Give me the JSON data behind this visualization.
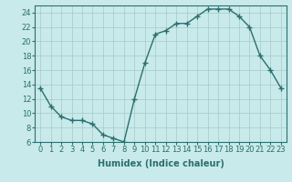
{
  "x": [
    0,
    1,
    2,
    3,
    4,
    5,
    6,
    7,
    8,
    9,
    10,
    11,
    12,
    13,
    14,
    15,
    16,
    17,
    18,
    19,
    20,
    21,
    22,
    23
  ],
  "y": [
    13.5,
    11.0,
    9.5,
    9.0,
    9.0,
    8.5,
    7.0,
    6.5,
    6.0,
    12.0,
    17.0,
    21.0,
    21.5,
    22.5,
    22.5,
    23.5,
    24.5,
    24.5,
    24.5,
    23.5,
    22.0,
    18.0,
    16.0,
    13.5
  ],
  "color": "#2d6e6e",
  "bg_color": "#c8eaea",
  "grid_color": "#a8c8c8",
  "xlabel": "Humidex (Indice chaleur)",
  "ylim": [
    6,
    25
  ],
  "xlim": [
    -0.5,
    23.5
  ],
  "yticks": [
    6,
    8,
    10,
    12,
    14,
    16,
    18,
    20,
    22,
    24
  ],
  "xticks": [
    0,
    1,
    2,
    3,
    4,
    5,
    6,
    7,
    8,
    9,
    10,
    11,
    12,
    13,
    14,
    15,
    16,
    17,
    18,
    19,
    20,
    21,
    22,
    23
  ],
  "marker": "+",
  "markersize": 4,
  "linewidth": 1.0,
  "xlabel_fontsize": 7,
  "tick_fontsize": 6
}
